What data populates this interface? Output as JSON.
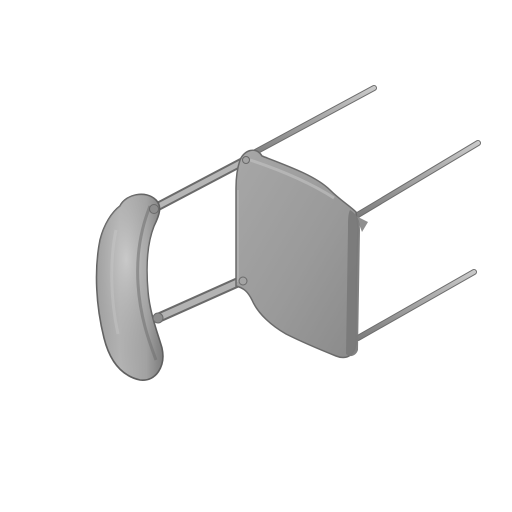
{
  "scene": {
    "subject_icon": "chair-render-icon",
    "colors": {
      "background": "#ffffff",
      "surface_light": "#b9b9b9",
      "surface_mid": "#9a9a9a",
      "surface_dark": "#6f6f6f",
      "outline": "#5e5e5e"
    }
  }
}
